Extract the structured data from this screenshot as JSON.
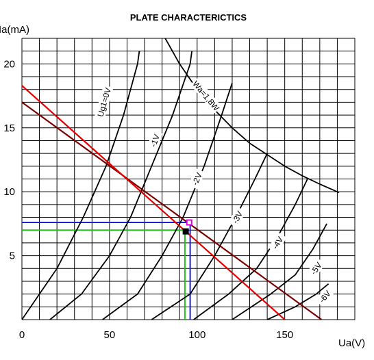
{
  "chart_data": {
    "type": "line",
    "title": "PLATE CHARACTERICTICS",
    "xlabel": "Ua(V)",
    "ylabel": "Ia(mA)",
    "xlim": [
      0,
      190
    ],
    "ylim": [
      0,
      22
    ],
    "x_ticks": [
      0,
      50,
      100,
      150
    ],
    "y_ticks": [
      5,
      10,
      15,
      20
    ],
    "grid": true,
    "grid_step_x": 10,
    "grid_step_y": 1,
    "series": [
      {
        "name": "Ug1=0V",
        "color": "#000000",
        "points": [
          [
            0,
            0
          ],
          [
            20,
            4
          ],
          [
            35,
            8
          ],
          [
            48,
            12
          ],
          [
            58,
            16
          ],
          [
            66,
            20
          ],
          [
            67,
            21
          ]
        ]
      },
      {
        "name": "-1V",
        "color": "#000000",
        "points": [
          [
            16,
            0
          ],
          [
            34,
            2
          ],
          [
            50,
            5
          ],
          [
            62,
            8
          ],
          [
            74,
            12
          ],
          [
            86,
            16
          ],
          [
            96,
            20
          ],
          [
            97,
            21
          ]
        ]
      },
      {
        "name": "-2V",
        "color": "#000000",
        "points": [
          [
            46,
            0
          ],
          [
            66,
            2
          ],
          [
            80,
            5
          ],
          [
            92,
            8
          ],
          [
            104,
            12
          ],
          [
            114,
            16
          ],
          [
            120,
            18.5
          ]
        ]
      },
      {
        "name": "-3V",
        "color": "#000000",
        "points": [
          [
            74,
            0
          ],
          [
            96,
            2
          ],
          [
            110,
            5
          ],
          [
            122,
            8
          ],
          [
            133,
            11
          ],
          [
            140,
            13
          ]
        ]
      },
      {
        "name": "-4V",
        "color": "#000000",
        "points": [
          [
            98,
            0
          ],
          [
            118,
            2
          ],
          [
            134,
            4
          ],
          [
            146,
            6.5
          ],
          [
            156,
            9
          ],
          [
            163,
            11
          ]
        ]
      },
      {
        "name": "-5V",
        "color": "#000000",
        "points": [
          [
            120,
            0
          ],
          [
            142,
            2
          ],
          [
            156,
            3.5
          ],
          [
            166,
            5.5
          ],
          [
            174,
            7.5
          ]
        ]
      },
      {
        "name": "-6V",
        "color": "#000000",
        "points": [
          [
            140,
            0
          ],
          [
            156,
            1
          ],
          [
            168,
            2
          ],
          [
            175,
            2.8
          ]
        ]
      },
      {
        "name": "Wa=1,8W",
        "color": "#000000",
        "points": [
          [
            81.8,
            22
          ],
          [
            90,
            20
          ],
          [
            100,
            18
          ],
          [
            110,
            16.4
          ],
          [
            120,
            15
          ],
          [
            130,
            13.8
          ],
          [
            140,
            12.9
          ],
          [
            150,
            12
          ],
          [
            160,
            11.25
          ],
          [
            170,
            10.6
          ],
          [
            180,
            10
          ],
          [
            181,
            9.94
          ]
        ]
      }
    ],
    "load_lines": [
      {
        "color": "#7a0000",
        "points": [
          [
            0,
            17
          ],
          [
            171,
            0
          ]
        ]
      },
      {
        "color": "#e00000",
        "points": [
          [
            0,
            18.3
          ],
          [
            150,
            0
          ]
        ]
      }
    ],
    "guide_lines": [
      {
        "color": "#2020d0",
        "points": [
          [
            0,
            7.6
          ],
          [
            96,
            7.6
          ],
          [
            96,
            0
          ]
        ]
      },
      {
        "color": "#20c020",
        "points": [
          [
            0,
            7.0
          ],
          [
            93,
            7.0
          ],
          [
            93,
            0
          ]
        ]
      }
    ],
    "markers": [
      {
        "shape": "square",
        "color": "#e000e0",
        "x": 95.5,
        "y": 7.6
      },
      {
        "shape": "square",
        "color": "#000000",
        "x": 93.5,
        "y": 6.9
      }
    ],
    "curve_labels": [
      {
        "text": "Ug1=0V",
        "x": 47,
        "y": 17,
        "angle": -74
      },
      {
        "text": "-1V",
        "x": 76,
        "y": 14,
        "angle": -70
      },
      {
        "text": "-2V",
        "x": 100,
        "y": 11,
        "angle": -66
      },
      {
        "text": "-3V",
        "x": 123,
        "y": 8,
        "angle": -62
      },
      {
        "text": "-4V",
        "x": 146,
        "y": 6,
        "angle": -58
      },
      {
        "text": "-5V",
        "x": 168,
        "y": 4,
        "angle": -55
      },
      {
        "text": "-6V",
        "x": 173,
        "y": 1.8,
        "angle": -50
      },
      {
        "text": "Wa=1,8W",
        "x": 105,
        "y": 17.5,
        "angle": 50
      }
    ]
  }
}
